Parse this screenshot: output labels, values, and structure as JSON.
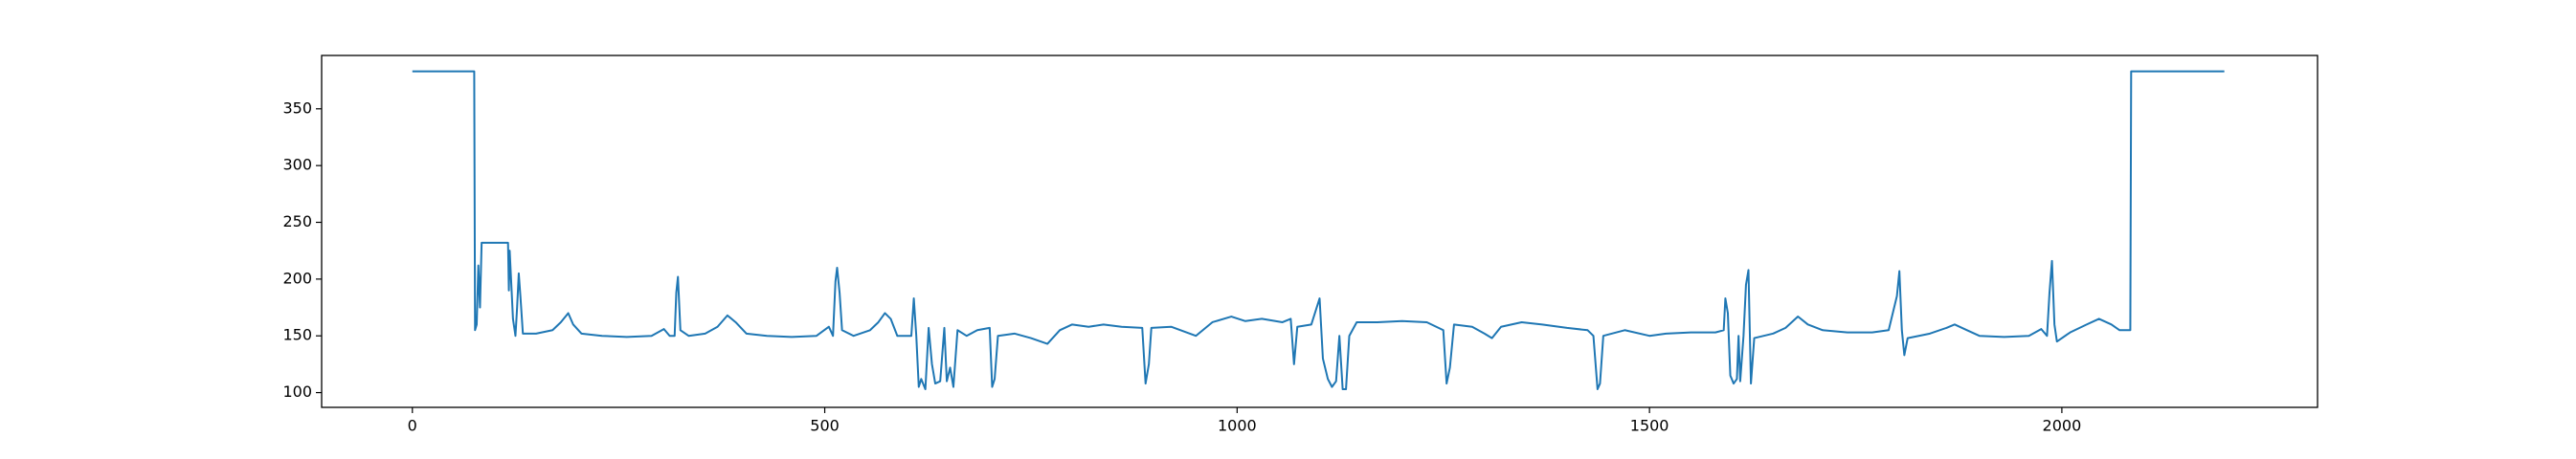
{
  "chart_data": {
    "type": "line",
    "color": "#1f77b4",
    "x": [
      0,
      75,
      76,
      78,
      80,
      82,
      84,
      116,
      117,
      118,
      122,
      125,
      127,
      129,
      131,
      134,
      150,
      170,
      180,
      189,
      195,
      205,
      230,
      260,
      290,
      305,
      312,
      318,
      320,
      322,
      325,
      335,
      355,
      370,
      382,
      392,
      405,
      430,
      460,
      490,
      505,
      510,
      513,
      515,
      518,
      521,
      535,
      555,
      565,
      573,
      580,
      588,
      605,
      608,
      611,
      614,
      617,
      622,
      626,
      630,
      634,
      640,
      645,
      648,
      652,
      656,
      661,
      672,
      685,
      700,
      703,
      706,
      710,
      730,
      750,
      770,
      785,
      800,
      820,
      838,
      860,
      885,
      889,
      893,
      896,
      920,
      950,
      970,
      993,
      1010,
      1030,
      1055,
      1065,
      1069,
      1073,
      1090,
      1100,
      1104,
      1110,
      1115,
      1120,
      1124,
      1128,
      1132,
      1136,
      1145,
      1170,
      1200,
      1230,
      1250,
      1254,
      1258,
      1263,
      1285,
      1300,
      1309,
      1320,
      1345,
      1370,
      1400,
      1425,
      1432,
      1437,
      1440,
      1444,
      1470,
      1500,
      1520,
      1550,
      1580,
      1590,
      1592,
      1595,
      1598,
      1602,
      1606,
      1608,
      1610,
      1614,
      1617,
      1620,
      1623,
      1627,
      1650,
      1665,
      1680,
      1692,
      1710,
      1740,
      1770,
      1790,
      1800,
      1803,
      1806,
      1809,
      1813,
      1840,
      1860,
      1870,
      1885,
      1900,
      1930,
      1960,
      1975,
      1982,
      1985,
      1988,
      1991,
      1994,
      2010,
      2030,
      2045,
      2060,
      2070,
      2083,
      2084,
      2197
    ],
    "values": [
      383,
      383,
      155,
      160,
      212,
      175,
      232,
      232,
      190,
      225,
      165,
      150,
      175,
      205,
      185,
      152,
      152,
      155,
      162,
      170,
      160,
      152,
      150,
      149,
      150,
      156,
      150,
      150,
      188,
      202,
      155,
      150,
      152,
      158,
      168,
      162,
      152,
      150,
      149,
      150,
      158,
      150,
      198,
      210,
      188,
      155,
      150,
      155,
      162,
      170,
      165,
      150,
      150,
      183,
      150,
      105,
      112,
      103,
      157,
      125,
      108,
      110,
      157,
      110,
      122,
      105,
      155,
      150,
      155,
      157,
      105,
      112,
      150,
      152,
      148,
      143,
      155,
      160,
      158,
      160,
      158,
      157,
      108,
      125,
      157,
      158,
      150,
      162,
      167,
      163,
      165,
      162,
      165,
      125,
      158,
      160,
      183,
      130,
      112,
      105,
      110,
      150,
      103,
      103,
      150,
      162,
      162,
      163,
      162,
      155,
      108,
      122,
      160,
      158,
      152,
      148,
      158,
      162,
      160,
      157,
      155,
      150,
      103,
      108,
      150,
      155,
      150,
      152,
      153,
      153,
      155,
      183,
      170,
      115,
      108,
      112,
      150,
      110,
      150,
      195,
      208,
      108,
      148,
      152,
      157,
      167,
      160,
      155,
      153,
      153,
      155,
      185,
      207,
      155,
      133,
      148,
      152,
      157,
      160,
      155,
      150,
      149,
      150,
      156,
      150,
      188,
      216,
      160,
      145,
      153,
      160,
      165,
      160,
      155,
      155,
      383,
      383
    ],
    "xlim": [
      -110,
      2310
    ],
    "ylim": [
      87,
      397
    ],
    "xticks": [
      0,
      500,
      1000,
      1500,
      2000
    ],
    "yticks": [
      100,
      150,
      200,
      250,
      300,
      350
    ]
  }
}
